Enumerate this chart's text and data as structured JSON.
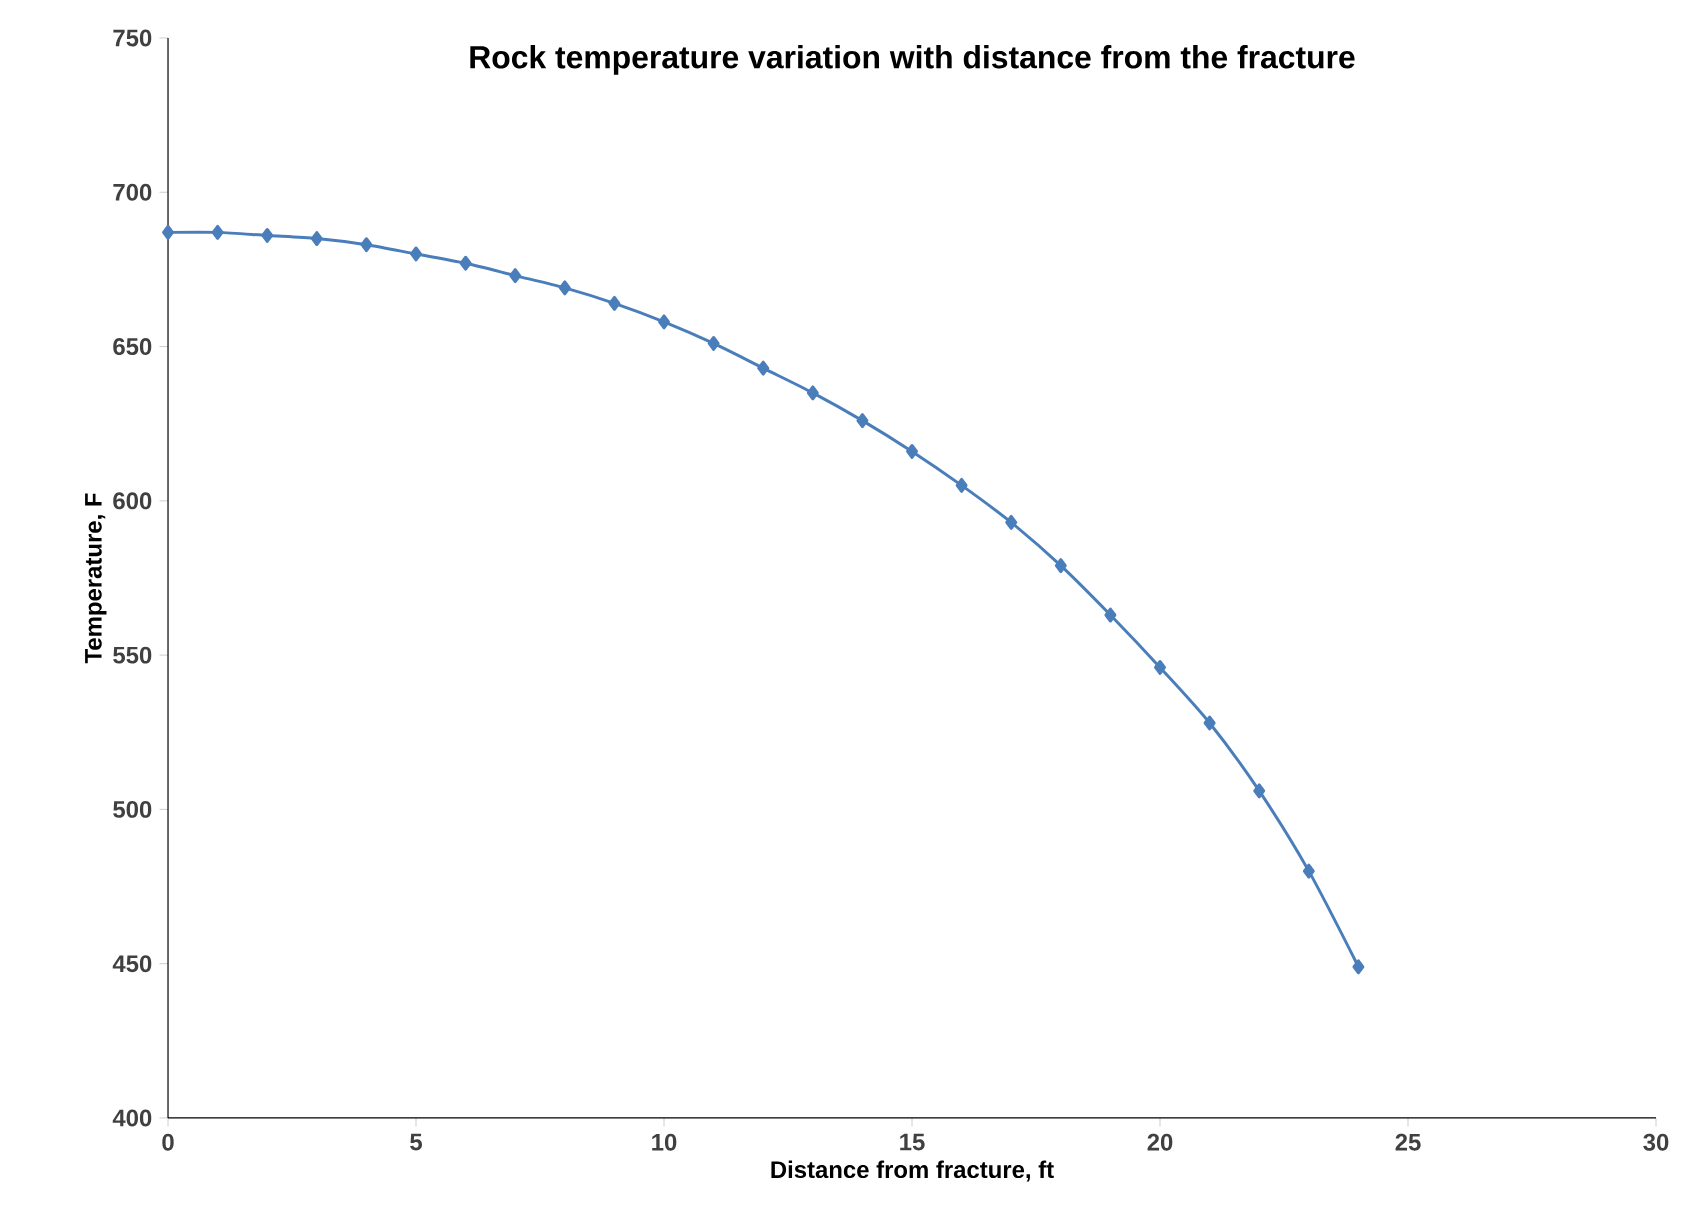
{
  "chart_data": {
    "type": "line",
    "title": "Rock temperature variation with distance from the fracture",
    "xlabel": "Distance from fracture, ft",
    "ylabel": "Temperature, F",
    "x": [
      0,
      1,
      2,
      3,
      4,
      5,
      6,
      7,
      8,
      9,
      10,
      11,
      12,
      13,
      14,
      15,
      16,
      17,
      18,
      19,
      20,
      21,
      22,
      23,
      24
    ],
    "series": [
      {
        "color": "#4a7ebb",
        "values": [
          687,
          687,
          686,
          685,
          683,
          680,
          677,
          673,
          669,
          664,
          658,
          651,
          643,
          635,
          626,
          616,
          605,
          593,
          579,
          563,
          546,
          528,
          506,
          480,
          449
        ]
      }
    ],
    "xlim": [
      0,
      30
    ],
    "ylim": [
      400,
      750
    ],
    "xticks": [
      0,
      5,
      10,
      15,
      20,
      25,
      30
    ],
    "yticks": [
      400,
      450,
      500,
      550,
      600,
      650,
      700,
      750
    ],
    "marker": "diamond",
    "grid": false
  }
}
